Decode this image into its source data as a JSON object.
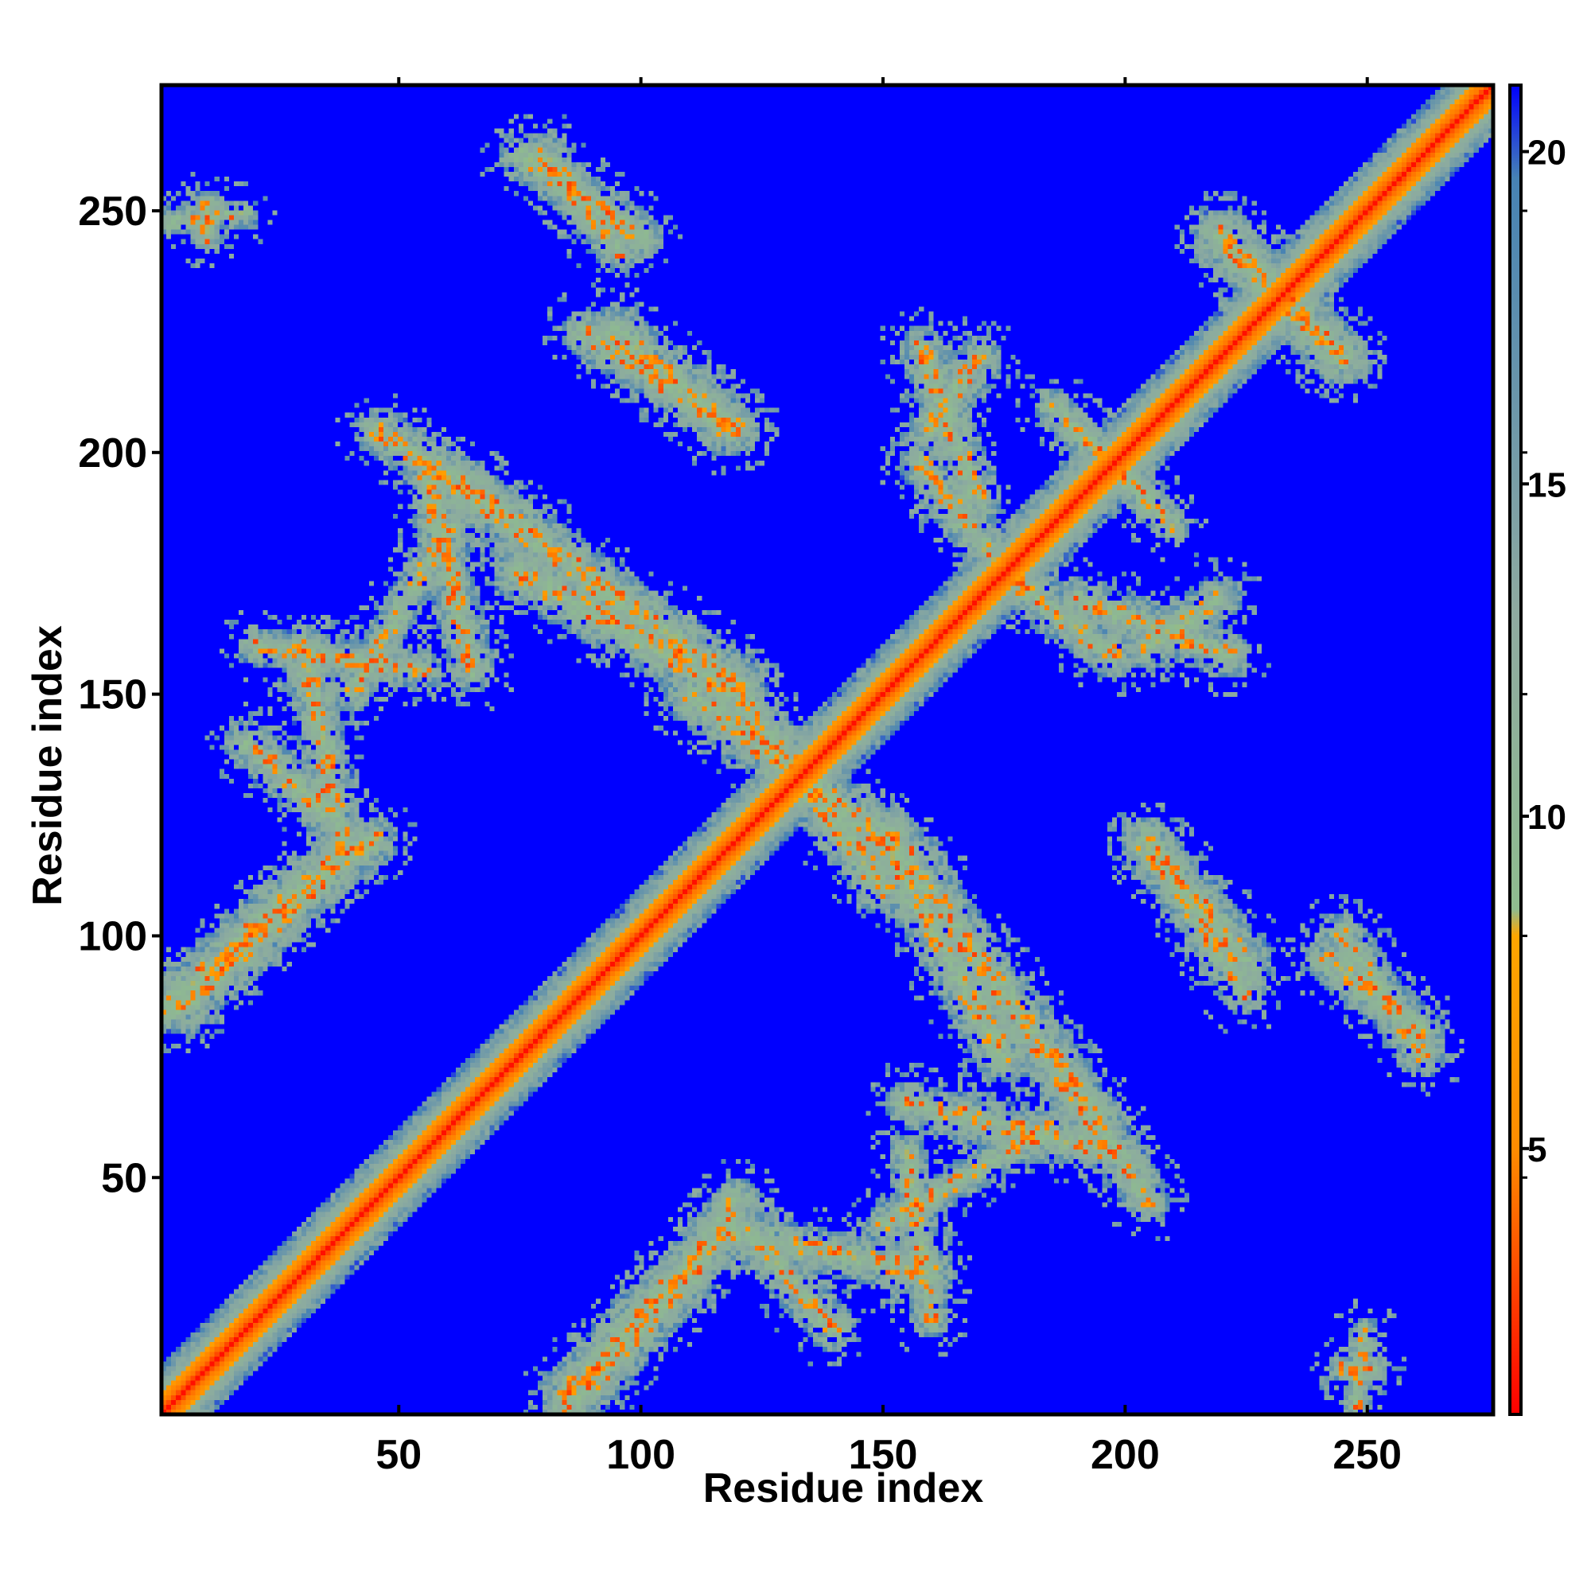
{
  "chart_data": {
    "type": "heatmap",
    "title": "",
    "xlabel": "Residue index",
    "ylabel": "Residue index",
    "n_residues": 276,
    "xlim": [
      1,
      276
    ],
    "ylim": [
      1,
      276
    ],
    "x_ticks": [
      50,
      100,
      150,
      200,
      250
    ],
    "y_ticks": [
      50,
      100,
      150,
      200,
      250
    ],
    "x_tick_labels": [
      "50",
      "100",
      "150",
      "200",
      "250"
    ],
    "y_tick_labels": [
      "50",
      "100",
      "150",
      "200",
      "250"
    ],
    "grid": false,
    "colorbar": {
      "ticks": [
        5,
        10,
        15,
        20
      ],
      "tick_labels": [
        "5",
        "10",
        "15",
        "20"
      ],
      "range": [
        1,
        21
      ],
      "colors": [
        "#ff0000",
        "#ff8c00",
        "#8fbc8f",
        "#4682b4",
        "#0000ff"
      ]
    },
    "background_color": "#0000ff",
    "contact_regions": [
      {
        "x1": 1,
        "y1": 1,
        "x2": 276,
        "y2": 276,
        "width": 4
      },
      {
        "x1": 85,
        "y1": 5,
        "x2": 118,
        "y2": 40,
        "width": 6
      },
      {
        "x1": 118,
        "y1": 38,
        "x2": 160,
        "y2": 30,
        "width": 5
      },
      {
        "x1": 150,
        "y1": 40,
        "x2": 185,
        "y2": 60,
        "width": 4
      },
      {
        "x1": 155,
        "y1": 65,
        "x2": 198,
        "y2": 55,
        "width": 5
      },
      {
        "x1": 152,
        "y1": 120,
        "x2": 195,
        "y2": 60,
        "width": 6
      },
      {
        "x1": 2,
        "y1": 85,
        "x2": 30,
        "y2": 110,
        "width": 6
      },
      {
        "x1": 30,
        "y1": 110,
        "x2": 45,
        "y2": 120,
        "width": 5
      },
      {
        "x1": 18,
        "y1": 140,
        "x2": 35,
        "y2": 125,
        "width": 5
      },
      {
        "x1": 20,
        "y1": 160,
        "x2": 55,
        "y2": 155,
        "width": 4
      },
      {
        "x1": 45,
        "y1": 205,
        "x2": 75,
        "y2": 185,
        "width": 5
      },
      {
        "x1": 75,
        "y1": 175,
        "x2": 120,
        "y2": 150,
        "width": 6
      },
      {
        "x1": 88,
        "y1": 225,
        "x2": 120,
        "y2": 205,
        "width": 5
      },
      {
        "x1": 75,
        "y1": 262,
        "x2": 100,
        "y2": 245,
        "width": 5
      },
      {
        "x1": 205,
        "y1": 118,
        "x2": 225,
        "y2": 95,
        "width": 6
      },
      {
        "x1": 242,
        "y1": 95,
        "x2": 262,
        "y2": 80,
        "width": 5
      },
      {
        "x1": 158,
        "y1": 222,
        "x2": 170,
        "y2": 190,
        "width": 5
      },
      {
        "x1": 175,
        "y1": 175,
        "x2": 198,
        "y2": 158,
        "width": 5
      },
      {
        "x1": 205,
        "y1": 160,
        "x2": 220,
        "y2": 170,
        "width": 5
      },
      {
        "x1": 185,
        "y1": 210,
        "x2": 205,
        "y2": 190,
        "width": 4
      },
      {
        "x1": 220,
        "y1": 245,
        "x2": 245,
        "y2": 220,
        "width": 6
      },
      {
        "x1": 110,
        "y1": 150,
        "x2": 150,
        "y2": 120,
        "width": 6
      },
      {
        "x1": 2,
        "y1": 248,
        "x2": 18,
        "y2": 250,
        "width": 3
      },
      {
        "x1": 245,
        "y1": 10,
        "x2": 252,
        "y2": 10,
        "width": 3
      }
    ]
  }
}
